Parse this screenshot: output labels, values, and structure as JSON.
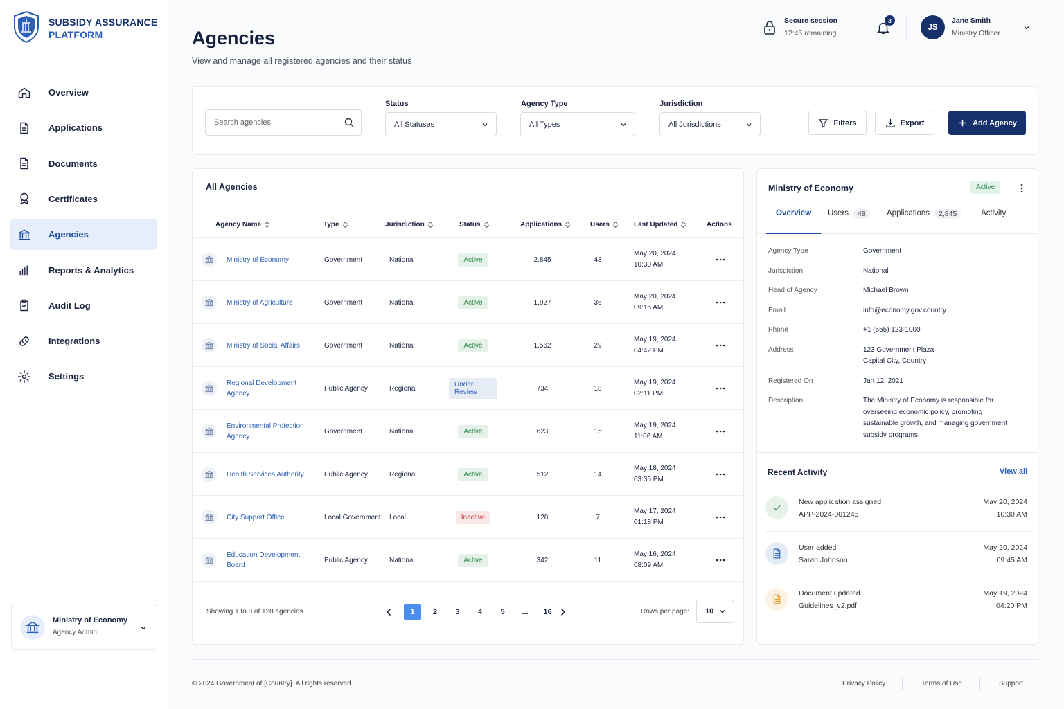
{
  "brand": {
    "line1": "SUBSIDY ASSURANCE",
    "line2": "PLATFORM"
  },
  "nav": [
    {
      "label": "Overview"
    },
    {
      "label": "Applications"
    },
    {
      "label": "Documents"
    },
    {
      "label": "Certificates"
    },
    {
      "label": "Agencies",
      "active": true
    },
    {
      "label": "Reports & Analytics"
    },
    {
      "label": "Audit Log"
    },
    {
      "label": "Integrations"
    },
    {
      "label": "Settings"
    }
  ],
  "account": {
    "name": "Ministry of Economy",
    "role": "Agency Admin"
  },
  "header": {
    "title": "Agencies",
    "subtitle": "View and manage all registered agencies and their status",
    "session_title": "Secure session",
    "session_time": "12:45 remaining",
    "notifications": "3",
    "user_initials": "JS",
    "user_name": "Jane Smith",
    "user_role": "Ministry Officer"
  },
  "filters": {
    "search_placeholder": "Search agencies...",
    "status_label": "Status",
    "status_value": "All Statuses",
    "type_label": "Agency Type",
    "type_value": "All Types",
    "jurisdiction_label": "Jurisdiction",
    "jurisdiction_value": "All Jurisdictions",
    "filters_button": "Filters",
    "export_button": "Export",
    "add_button": "Add Agency"
  },
  "table": {
    "title": "All Agencies",
    "columns": [
      "Agency Name",
      "Type",
      "Jurisdiction",
      "Status",
      "Applications",
      "Users",
      "Last Updated",
      "Actions"
    ],
    "rows": [
      {
        "name": "Ministry of Economy",
        "type": "Government",
        "jurisdiction": "National",
        "status": "Active",
        "status_color": "#2f8a4c",
        "applications": "2,845",
        "users": "48",
        "date": "May 20, 2024",
        "time": "10:30 AM"
      },
      {
        "name": "Ministry of Agriculture",
        "type": "Government",
        "jurisdiction": "National",
        "status": "Active",
        "status_color": "#2f8a4c",
        "applications": "1,927",
        "users": "36",
        "date": "May 20, 2024",
        "time": "09:15 AM"
      },
      {
        "name": "Ministry of Social Affairs",
        "type": "Government",
        "jurisdiction": "National",
        "status": "Active",
        "status_color": "#2f8a4c",
        "applications": "1,562",
        "users": "29",
        "date": "May 19, 2024",
        "time": "04:42 PM"
      },
      {
        "name": "Regional Development Agency",
        "type": "Public Agency",
        "jurisdiction": "Regional",
        "status": "Under Review",
        "status_color": "#2c5fb8",
        "applications": "734",
        "users": "18",
        "date": "May 19, 2024",
        "time": "02:11 PM"
      },
      {
        "name": "Environmental Protection Agency",
        "type": "Government",
        "jurisdiction": "National",
        "status": "Active",
        "status_color": "#2f8a4c",
        "applications": "623",
        "users": "15",
        "date": "May 19, 2024",
        "time": "11:06 AM"
      },
      {
        "name": "Health Services Authority",
        "type": "Public Agency",
        "jurisdiction": "Regional",
        "status": "Active",
        "status_color": "#2f8a4c",
        "applications": "512",
        "users": "14",
        "date": "May 18, 2024",
        "time": "03:35 PM"
      },
      {
        "name": "City Support Office",
        "type": "Local Government",
        "jurisdiction": "Local",
        "status": "Inactive",
        "status_color": "#d23b3b",
        "applications": "128",
        "users": "7",
        "date": "May 17, 2024",
        "time": "01:18 PM"
      },
      {
        "name": "Education Development Board",
        "type": "Public Agency",
        "jurisdiction": "National",
        "status": "Active",
        "status_color": "#2f8a4c",
        "applications": "342",
        "users": "11",
        "date": "May 16, 2024",
        "time": "08:09 AM"
      }
    ],
    "summary": "Showing 1 to 8 of 128 agencies",
    "pages": [
      "1",
      "2",
      "3",
      "4",
      "5",
      "...",
      "16"
    ],
    "rows_per_page_label": "Rows per page:",
    "rows_per_page": "10"
  },
  "detail": {
    "title": "Ministry of Economy",
    "status": "Active",
    "tabs": [
      {
        "label": "Overview"
      },
      {
        "label": "Users",
        "count": "48"
      },
      {
        "label": "Applications",
        "count": "2,845"
      },
      {
        "label": "Activity"
      }
    ],
    "fields": [
      {
        "label": "Agency Type",
        "value": [
          "Government"
        ]
      },
      {
        "label": "Jurisdiction",
        "value": [
          "National"
        ]
      },
      {
        "label": "Head of Agency",
        "value": [
          "Michael Brown"
        ]
      },
      {
        "label": "Email",
        "value": [
          "info@economy.gov.country"
        ]
      },
      {
        "label": "Phone",
        "value": [
          "+1 (555) 123-1000"
        ]
      },
      {
        "label": "Address",
        "value": [
          "123 Government Plaza",
          "Capital City, Country"
        ]
      },
      {
        "label": "Registered On",
        "value": [
          "Jan 12, 2021"
        ]
      },
      {
        "label": "Description",
        "value": [
          "The Ministry of Economy is responsible for overseeing economic policy, promoting sustainable growth, and managing government subsidy programs."
        ]
      }
    ]
  },
  "activity": {
    "title": "Recent Activity",
    "view_all": "View all",
    "items": [
      {
        "title": "New application assigned",
        "detail": "APP-2024-001245",
        "date": "May 20, 2024",
        "time": "10:30 AM",
        "color": "#2f8a4c"
      },
      {
        "title": "User added",
        "detail": "Sarah Johnson",
        "date": "May 20, 2024",
        "time": "09:45 AM",
        "color": "#2c5fb8"
      },
      {
        "title": "Document updated",
        "detail": "Guidelines_v2.pdf",
        "date": "May 19, 2024",
        "time": "04:20 PM",
        "color": "#e59a1c"
      }
    ]
  },
  "footer": {
    "copyright": "© 2024 Government of [Country]. All rights reserved.",
    "links": [
      "Privacy Policy",
      "Terms of Use",
      "Support"
    ]
  }
}
